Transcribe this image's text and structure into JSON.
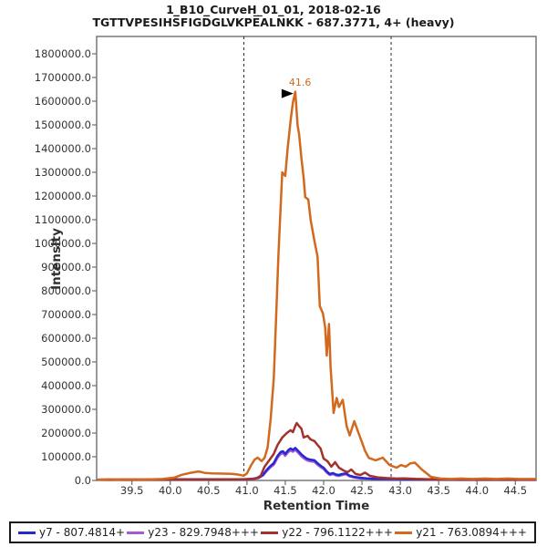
{
  "chart_data": {
    "type": "line",
    "title": "1_B10_CurveH_01_01, 2018-02-16",
    "subtitle": "TGTTVPESIHS̅FIGD̅GLVKPE̅ALN̅KK - 687.3771, 4+ (heavy)",
    "xlabel": "Retention Time",
    "ylabel": "Intensity",
    "xlim": [
      39.04,
      44.77
    ],
    "ylim": [
      0,
      1873000
    ],
    "x_ticks": [
      "39.5",
      "40.0",
      "40.5",
      "41.0",
      "41.5",
      "42.0",
      "42.5",
      "43.0",
      "43.5",
      "44.0",
      "44.5"
    ],
    "y_ticks": [
      "0.0",
      "100000.0",
      "200000.0",
      "300000.0",
      "400000.0",
      "500000.0",
      "600000.0",
      "700000.0",
      "800000.0",
      "900000.0",
      "1000000.0",
      "1100000.0",
      "1200000.0",
      "1300000.0",
      "1400000.0",
      "1500000.0",
      "1600000.0",
      "1700000.0",
      "1800000.0"
    ],
    "grid": false,
    "legend_position": "bottom",
    "peak_boundaries": [
      40.96,
      42.88
    ],
    "annotation": {
      "label": "41.6",
      "rt": 41.63,
      "intensity": 1640000
    },
    "colors": {
      "frame": "#6e6e6e",
      "boundary": "#2b2b2b",
      "annotation_text": "#cf6a1e",
      "arrow": "#000000"
    },
    "draw_order": [
      1,
      0,
      2,
      3
    ],
    "series": [
      {
        "name": "y7 - 807.4814+",
        "color": "#2828cf",
        "points": [
          [
            39.06,
            3500
          ],
          [
            39.3,
            4000
          ],
          [
            39.6,
            4000
          ],
          [
            39.9,
            4500
          ],
          [
            40.2,
            5000
          ],
          [
            40.5,
            5000
          ],
          [
            40.8,
            5000
          ],
          [
            41.0,
            5500
          ],
          [
            41.08,
            7000
          ],
          [
            41.15,
            12000
          ],
          [
            41.21,
            24000
          ],
          [
            41.26,
            45000
          ],
          [
            41.31,
            62000
          ],
          [
            41.35,
            73000
          ],
          [
            41.4,
            104000
          ],
          [
            41.44,
            120000
          ],
          [
            41.47,
            123000
          ],
          [
            41.5,
            112000
          ],
          [
            41.54,
            128000
          ],
          [
            41.57,
            135000
          ],
          [
            41.6,
            129000
          ],
          [
            41.63,
            137000
          ],
          [
            41.67,
            124000
          ],
          [
            41.71,
            110000
          ],
          [
            41.74,
            102000
          ],
          [
            41.78,
            92000
          ],
          [
            41.82,
            88000
          ],
          [
            41.88,
            85000
          ],
          [
            41.93,
            70000
          ],
          [
            41.97,
            60000
          ],
          [
            42.0,
            54000
          ],
          [
            42.04,
            38000
          ],
          [
            42.08,
            27000
          ],
          [
            42.12,
            31000
          ],
          [
            42.16,
            25000
          ],
          [
            42.2,
            23000
          ],
          [
            42.24,
            27000
          ],
          [
            42.29,
            30000
          ],
          [
            42.34,
            20000
          ],
          [
            42.4,
            15000
          ],
          [
            42.48,
            11000
          ],
          [
            42.56,
            9000
          ],
          [
            42.68,
            7000
          ],
          [
            42.85,
            6000
          ],
          [
            43.1,
            5000
          ],
          [
            43.4,
            4500
          ],
          [
            43.8,
            4000
          ],
          [
            44.2,
            4000
          ],
          [
            44.76,
            4000
          ]
        ]
      },
      {
        "name": "y23 - 829.7948+++",
        "color": "#a55ad6",
        "points": [
          [
            39.06,
            3000
          ],
          [
            39.4,
            3500
          ],
          [
            39.8,
            4000
          ],
          [
            40.2,
            4500
          ],
          [
            40.6,
            4500
          ],
          [
            41.0,
            5000
          ],
          [
            41.08,
            6000
          ],
          [
            41.15,
            10000
          ],
          [
            41.21,
            21000
          ],
          [
            41.26,
            40000
          ],
          [
            41.31,
            56000
          ],
          [
            41.35,
            66000
          ],
          [
            41.4,
            96000
          ],
          [
            41.44,
            112000
          ],
          [
            41.47,
            115000
          ],
          [
            41.5,
            104000
          ],
          [
            41.54,
            120000
          ],
          [
            41.57,
            127000
          ],
          [
            41.6,
            121000
          ],
          [
            41.63,
            129000
          ],
          [
            41.67,
            116000
          ],
          [
            41.71,
            102000
          ],
          [
            41.74,
            94000
          ],
          [
            41.78,
            85000
          ],
          [
            41.82,
            81000
          ],
          [
            41.88,
            78000
          ],
          [
            41.93,
            64000
          ],
          [
            41.97,
            54000
          ],
          [
            42.0,
            48000
          ],
          [
            42.04,
            33000
          ],
          [
            42.08,
            23000
          ],
          [
            42.12,
            27000
          ],
          [
            42.16,
            21000
          ],
          [
            42.2,
            19000
          ],
          [
            42.24,
            23000
          ],
          [
            42.29,
            26000
          ],
          [
            42.34,
            17000
          ],
          [
            42.4,
            12000
          ],
          [
            42.48,
            9000
          ],
          [
            42.56,
            7500
          ],
          [
            42.68,
            6000
          ],
          [
            42.85,
            5000
          ],
          [
            43.1,
            4500
          ],
          [
            43.4,
            4000
          ],
          [
            43.8,
            3500
          ],
          [
            44.2,
            3500
          ],
          [
            44.76,
            3500
          ]
        ]
      },
      {
        "name": "y22 - 796.1122+++",
        "color": "#a2332c",
        "points": [
          [
            39.06,
            2500
          ],
          [
            39.4,
            3000
          ],
          [
            39.8,
            3500
          ],
          [
            40.2,
            4000
          ],
          [
            40.6,
            4000
          ],
          [
            40.9,
            4500
          ],
          [
            41.05,
            6000
          ],
          [
            41.12,
            9000
          ],
          [
            41.18,
            20000
          ],
          [
            41.23,
            58000
          ],
          [
            41.29,
            85000
          ],
          [
            41.35,
            112000
          ],
          [
            41.4,
            150000
          ],
          [
            41.46,
            181000
          ],
          [
            41.52,
            200000
          ],
          [
            41.57,
            212000
          ],
          [
            41.6,
            204000
          ],
          [
            41.63,
            230000
          ],
          [
            41.65,
            242000
          ],
          [
            41.68,
            229000
          ],
          [
            41.71,
            219000
          ],
          [
            41.74,
            181000
          ],
          [
            41.79,
            188000
          ],
          [
            41.83,
            173000
          ],
          [
            41.88,
            166000
          ],
          [
            41.92,
            150000
          ],
          [
            41.96,
            135000
          ],
          [
            42.0,
            92000
          ],
          [
            42.05,
            81000
          ],
          [
            42.1,
            58000
          ],
          [
            42.15,
            77000
          ],
          [
            42.2,
            54000
          ],
          [
            42.26,
            42000
          ],
          [
            42.31,
            35000
          ],
          [
            42.36,
            46000
          ],
          [
            42.42,
            27000
          ],
          [
            42.48,
            23000
          ],
          [
            42.54,
            33000
          ],
          [
            42.6,
            20000
          ],
          [
            42.7,
            13000
          ],
          [
            42.82,
            10000
          ],
          [
            42.95,
            8000
          ],
          [
            43.05,
            9000
          ],
          [
            43.2,
            6500
          ],
          [
            43.4,
            5000
          ],
          [
            43.7,
            4500
          ],
          [
            44.1,
            4000
          ],
          [
            44.5,
            4000
          ],
          [
            44.76,
            4000
          ]
        ]
      },
      {
        "name": "y21 - 763.0894+++",
        "color": "#d2691e",
        "points": [
          [
            39.06,
            3000
          ],
          [
            39.2,
            4500
          ],
          [
            39.3,
            3500
          ],
          [
            39.45,
            5000
          ],
          [
            39.6,
            4000
          ],
          [
            39.75,
            5000
          ],
          [
            39.9,
            6000
          ],
          [
            40.05,
            12000
          ],
          [
            40.15,
            24000
          ],
          [
            40.25,
            31000
          ],
          [
            40.37,
            38000
          ],
          [
            40.45,
            32000
          ],
          [
            40.55,
            30000
          ],
          [
            40.68,
            29000
          ],
          [
            40.8,
            28000
          ],
          [
            40.9,
            24000
          ],
          [
            40.96,
            20000
          ],
          [
            41.0,
            30000
          ],
          [
            41.05,
            62000
          ],
          [
            41.1,
            88000
          ],
          [
            41.14,
            96000
          ],
          [
            41.19,
            82000
          ],
          [
            41.23,
            95000
          ],
          [
            41.27,
            140000
          ],
          [
            41.31,
            260000
          ],
          [
            41.35,
            430000
          ],
          [
            41.38,
            680000
          ],
          [
            41.41,
            950000
          ],
          [
            41.44,
            1160000
          ],
          [
            41.46,
            1300000
          ],
          [
            41.5,
            1285000
          ],
          [
            41.53,
            1400000
          ],
          [
            41.57,
            1520000
          ],
          [
            41.6,
            1595000
          ],
          [
            41.63,
            1640000
          ],
          [
            41.66,
            1500000
          ],
          [
            41.68,
            1460000
          ],
          [
            41.71,
            1360000
          ],
          [
            41.74,
            1275000
          ],
          [
            41.76,
            1195000
          ],
          [
            41.8,
            1185000
          ],
          [
            41.83,
            1100000
          ],
          [
            41.88,
            1010000
          ],
          [
            41.92,
            945000
          ],
          [
            41.95,
            735000
          ],
          [
            41.99,
            705000
          ],
          [
            42.02,
            645000
          ],
          [
            42.04,
            527000
          ],
          [
            42.07,
            660000
          ],
          [
            42.09,
            480000
          ],
          [
            42.13,
            285000
          ],
          [
            42.17,
            348000
          ],
          [
            42.2,
            310000
          ],
          [
            42.25,
            340000
          ],
          [
            42.3,
            230000
          ],
          [
            42.34,
            190000
          ],
          [
            42.4,
            250000
          ],
          [
            42.45,
            205000
          ],
          [
            42.49,
            170000
          ],
          [
            42.54,
            125000
          ],
          [
            42.59,
            95000
          ],
          [
            42.68,
            85000
          ],
          [
            42.77,
            96000
          ],
          [
            42.86,
            65000
          ],
          [
            42.95,
            54000
          ],
          [
            43.01,
            65000
          ],
          [
            43.07,
            58000
          ],
          [
            43.13,
            72000
          ],
          [
            43.19,
            75000
          ],
          [
            43.28,
            46000
          ],
          [
            43.4,
            15000
          ],
          [
            43.52,
            8000
          ],
          [
            43.65,
            6000
          ],
          [
            43.8,
            8000
          ],
          [
            43.95,
            6000
          ],
          [
            44.1,
            8000
          ],
          [
            44.25,
            6000
          ],
          [
            44.4,
            8000
          ],
          [
            44.55,
            6000
          ],
          [
            44.76,
            6000
          ]
        ]
      }
    ]
  }
}
